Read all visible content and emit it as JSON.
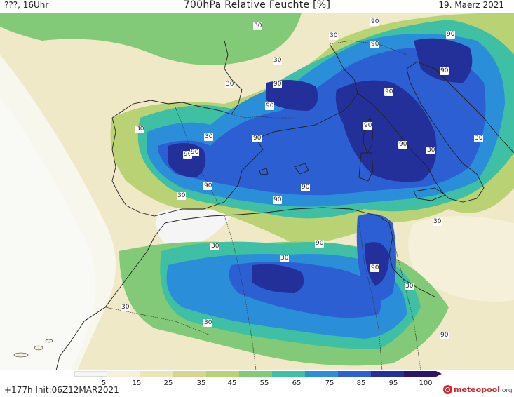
{
  "header": {
    "left": "???, 16Uhr",
    "title": "700hPa Relative Feuchte [%]",
    "date": "19. Maerz 2021"
  },
  "footer": {
    "forecast": "+177h  Init:06Z12MAR2021",
    "logo_text": "meteopool",
    "logo_suffix": ".org"
  },
  "colorbar": {
    "ticks": [
      "5",
      "15",
      "25",
      "35",
      "45",
      "55",
      "65",
      "75",
      "85",
      "95",
      "100"
    ],
    "colors": [
      "#f5f5f5",
      "#f4f0da",
      "#ece4b8",
      "#d9d58e",
      "#b9d274",
      "#82c978",
      "#3fbfa3",
      "#2b8ed8",
      "#2b5fd2",
      "#24309a",
      "#2a1569",
      "#3c0a5a"
    ]
  },
  "contour_labels": [
    "30",
    "90",
    "30",
    "90",
    "90",
    "30",
    "30",
    "90",
    "90",
    "90",
    "30",
    "90",
    "90",
    "90",
    "90",
    "30",
    "90",
    "30",
    "90",
    "30",
    "90",
    "90",
    "30",
    "90",
    "30",
    "90",
    "30",
    "30",
    "90",
    "30",
    "30",
    "30",
    "90",
    "30",
    "90",
    "30",
    "30"
  ]
}
